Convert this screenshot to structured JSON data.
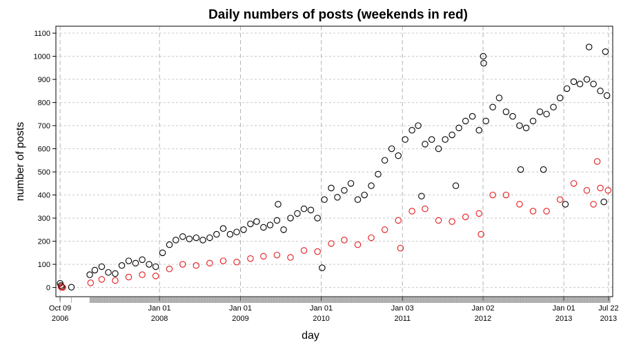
{
  "chart_data": {
    "type": "scatter",
    "title": "Daily numbers of posts (weekends in red)",
    "xlabel": "day",
    "ylabel": "number of posts",
    "ylim": [
      -40,
      1130
    ],
    "xlim": [
      "2006-09-20",
      "2013-08-10"
    ],
    "yticks": [
      0,
      100,
      200,
      300,
      400,
      500,
      600,
      700,
      800,
      900,
      1000,
      1100
    ],
    "xticks": [
      {
        "date": "2006-10-09",
        "line1": "Oct 09",
        "line2": "2006"
      },
      {
        "date": "2008-01-01",
        "line1": "Jan 01",
        "line2": "2008"
      },
      {
        "date": "2009-01-01",
        "line1": "Jan 01",
        "line2": "2009"
      },
      {
        "date": "2010-01-01",
        "line1": "Jan 01",
        "line2": "2010"
      },
      {
        "date": "2011-01-03",
        "line1": "Jan 03",
        "line2": "2011"
      },
      {
        "date": "2012-01-02",
        "line1": "Jan 02",
        "line2": "2012"
      },
      {
        "date": "2013-01-01",
        "line1": "Jan 01",
        "line2": "2013"
      },
      {
        "date": "2013-07-22",
        "line1": "Jul 22",
        "line2": "2013"
      }
    ],
    "grid": true,
    "marker": "open-circle",
    "series": [
      {
        "color": "#000000",
        "points": [
          {
            "x": "2006-10-09",
            "y": 18
          },
          {
            "x": "2006-10-13",
            "y": 8
          },
          {
            "x": "2006-10-17",
            "y": 3
          },
          {
            "x": "2006-11-29",
            "y": 1
          },
          {
            "x": "2007-02-20",
            "y": 55
          },
          {
            "x": "2007-03-15",
            "y": 75
          },
          {
            "x": "2007-04-15",
            "y": 90
          },
          {
            "x": "2007-05-15",
            "y": 65
          },
          {
            "x": "2007-06-15",
            "y": 60
          },
          {
            "x": "2007-07-15",
            "y": 95
          },
          {
            "x": "2007-08-15",
            "y": 115
          },
          {
            "x": "2007-09-15",
            "y": 105
          },
          {
            "x": "2007-10-15",
            "y": 120
          },
          {
            "x": "2007-11-15",
            "y": 100
          },
          {
            "x": "2007-12-15",
            "y": 90
          },
          {
            "x": "2008-01-15",
            "y": 150
          },
          {
            "x": "2008-02-15",
            "y": 185
          },
          {
            "x": "2008-03-15",
            "y": 205
          },
          {
            "x": "2008-04-15",
            "y": 220
          },
          {
            "x": "2008-05-15",
            "y": 210
          },
          {
            "x": "2008-06-15",
            "y": 215
          },
          {
            "x": "2008-07-15",
            "y": 205
          },
          {
            "x": "2008-08-15",
            "y": 215
          },
          {
            "x": "2008-09-15",
            "y": 230
          },
          {
            "x": "2008-10-15",
            "y": 255
          },
          {
            "x": "2008-11-15",
            "y": 230
          },
          {
            "x": "2008-12-15",
            "y": 240
          },
          {
            "x": "2009-01-15",
            "y": 250
          },
          {
            "x": "2009-02-15",
            "y": 275
          },
          {
            "x": "2009-03-15",
            "y": 285
          },
          {
            "x": "2009-04-15",
            "y": 260
          },
          {
            "x": "2009-05-15",
            "y": 270
          },
          {
            "x": "2009-06-15",
            "y": 290
          },
          {
            "x": "2009-07-15",
            "y": 250
          },
          {
            "x": "2009-08-15",
            "y": 300
          },
          {
            "x": "2009-09-15",
            "y": 320
          },
          {
            "x": "2009-10-15",
            "y": 340
          },
          {
            "x": "2009-11-15",
            "y": 335
          },
          {
            "x": "2009-12-15",
            "y": 300
          },
          {
            "x": "2010-01-15",
            "y": 380
          },
          {
            "x": "2010-02-15",
            "y": 430
          },
          {
            "x": "2010-03-15",
            "y": 390
          },
          {
            "x": "2010-04-15",
            "y": 420
          },
          {
            "x": "2010-05-15",
            "y": 450
          },
          {
            "x": "2010-06-15",
            "y": 380
          },
          {
            "x": "2010-07-15",
            "y": 400
          },
          {
            "x": "2010-08-15",
            "y": 440
          },
          {
            "x": "2010-09-15",
            "y": 490
          },
          {
            "x": "2010-10-15",
            "y": 550
          },
          {
            "x": "2010-11-15",
            "y": 600
          },
          {
            "x": "2010-12-15",
            "y": 570
          },
          {
            "x": "2011-01-15",
            "y": 640
          },
          {
            "x": "2011-02-15",
            "y": 680
          },
          {
            "x": "2011-03-15",
            "y": 700
          },
          {
            "x": "2011-04-15",
            "y": 620
          },
          {
            "x": "2011-05-15",
            "y": 640
          },
          {
            "x": "2011-06-15",
            "y": 600
          },
          {
            "x": "2011-07-15",
            "y": 640
          },
          {
            "x": "2011-08-15",
            "y": 660
          },
          {
            "x": "2011-09-15",
            "y": 690
          },
          {
            "x": "2011-10-15",
            "y": 720
          },
          {
            "x": "2011-11-15",
            "y": 740
          },
          {
            "x": "2011-12-15",
            "y": 680
          },
          {
            "x": "2012-01-15",
            "y": 720
          },
          {
            "x": "2012-02-15",
            "y": 780
          },
          {
            "x": "2012-03-15",
            "y": 820
          },
          {
            "x": "2012-04-15",
            "y": 760
          },
          {
            "x": "2012-05-15",
            "y": 740
          },
          {
            "x": "2012-06-15",
            "y": 700
          },
          {
            "x": "2012-07-15",
            "y": 690
          },
          {
            "x": "2012-08-15",
            "y": 720
          },
          {
            "x": "2012-09-15",
            "y": 760
          },
          {
            "x": "2012-10-15",
            "y": 750
          },
          {
            "x": "2012-11-15",
            "y": 780
          },
          {
            "x": "2012-12-15",
            "y": 820
          },
          {
            "x": "2013-01-15",
            "y": 860
          },
          {
            "x": "2013-02-15",
            "y": 890
          },
          {
            "x": "2013-03-15",
            "y": 880
          },
          {
            "x": "2013-04-15",
            "y": 900
          },
          {
            "x": "2013-05-15",
            "y": 880
          },
          {
            "x": "2013-06-15",
            "y": 850
          },
          {
            "x": "2013-07-15",
            "y": 830
          },
          {
            "x": "2009-06-20",
            "y": 360
          },
          {
            "x": "2010-01-05",
            "y": 85
          },
          {
            "x": "2011-03-30",
            "y": 395
          },
          {
            "x": "2011-09-01",
            "y": 440
          },
          {
            "x": "2012-01-03",
            "y": 1000
          },
          {
            "x": "2012-01-05",
            "y": 970
          },
          {
            "x": "2013-04-25",
            "y": 1040
          },
          {
            "x": "2013-07-08",
            "y": 1020
          },
          {
            "x": "2012-06-20",
            "y": 510
          },
          {
            "x": "2012-10-01",
            "y": 510
          },
          {
            "x": "2013-01-08",
            "y": 360
          },
          {
            "x": "2013-07-01",
            "y": 370
          }
        ]
      },
      {
        "color": "#e41a1c",
        "points": [
          {
            "x": "2006-10-14",
            "y": 2
          },
          {
            "x": "2006-10-21",
            "y": 0
          },
          {
            "x": "2007-02-24",
            "y": 20
          },
          {
            "x": "2007-04-15",
            "y": 35
          },
          {
            "x": "2007-06-15",
            "y": 30
          },
          {
            "x": "2007-08-15",
            "y": 45
          },
          {
            "x": "2007-10-15",
            "y": 55
          },
          {
            "x": "2007-12-15",
            "y": 50
          },
          {
            "x": "2008-02-15",
            "y": 80
          },
          {
            "x": "2008-04-15",
            "y": 100
          },
          {
            "x": "2008-06-15",
            "y": 95
          },
          {
            "x": "2008-08-15",
            "y": 105
          },
          {
            "x": "2008-10-15",
            "y": 115
          },
          {
            "x": "2008-12-15",
            "y": 110
          },
          {
            "x": "2009-02-15",
            "y": 125
          },
          {
            "x": "2009-04-15",
            "y": 135
          },
          {
            "x": "2009-06-15",
            "y": 140
          },
          {
            "x": "2009-08-15",
            "y": 130
          },
          {
            "x": "2009-10-15",
            "y": 160
          },
          {
            "x": "2009-12-15",
            "y": 155
          },
          {
            "x": "2010-02-15",
            "y": 190
          },
          {
            "x": "2010-04-15",
            "y": 205
          },
          {
            "x": "2010-06-15",
            "y": 185
          },
          {
            "x": "2010-08-15",
            "y": 215
          },
          {
            "x": "2010-10-15",
            "y": 250
          },
          {
            "x": "2010-12-15",
            "y": 290
          },
          {
            "x": "2011-02-15",
            "y": 330
          },
          {
            "x": "2011-04-15",
            "y": 340
          },
          {
            "x": "2011-06-15",
            "y": 290
          },
          {
            "x": "2011-08-15",
            "y": 285
          },
          {
            "x": "2011-10-15",
            "y": 305
          },
          {
            "x": "2011-12-15",
            "y": 320
          },
          {
            "x": "2012-02-15",
            "y": 400
          },
          {
            "x": "2012-04-15",
            "y": 400
          },
          {
            "x": "2012-06-15",
            "y": 360
          },
          {
            "x": "2012-08-15",
            "y": 330
          },
          {
            "x": "2012-10-15",
            "y": 330
          },
          {
            "x": "2012-12-15",
            "y": 380
          },
          {
            "x": "2013-02-15",
            "y": 450
          },
          {
            "x": "2013-04-15",
            "y": 420
          },
          {
            "x": "2013-06-15",
            "y": 430
          },
          {
            "x": "2013-07-20",
            "y": 420
          },
          {
            "x": "2010-12-25",
            "y": 170
          },
          {
            "x": "2011-12-24",
            "y": 230
          },
          {
            "x": "2013-06-01",
            "y": 545
          },
          {
            "x": "2013-05-15",
            "y": 360
          }
        ]
      }
    ]
  }
}
